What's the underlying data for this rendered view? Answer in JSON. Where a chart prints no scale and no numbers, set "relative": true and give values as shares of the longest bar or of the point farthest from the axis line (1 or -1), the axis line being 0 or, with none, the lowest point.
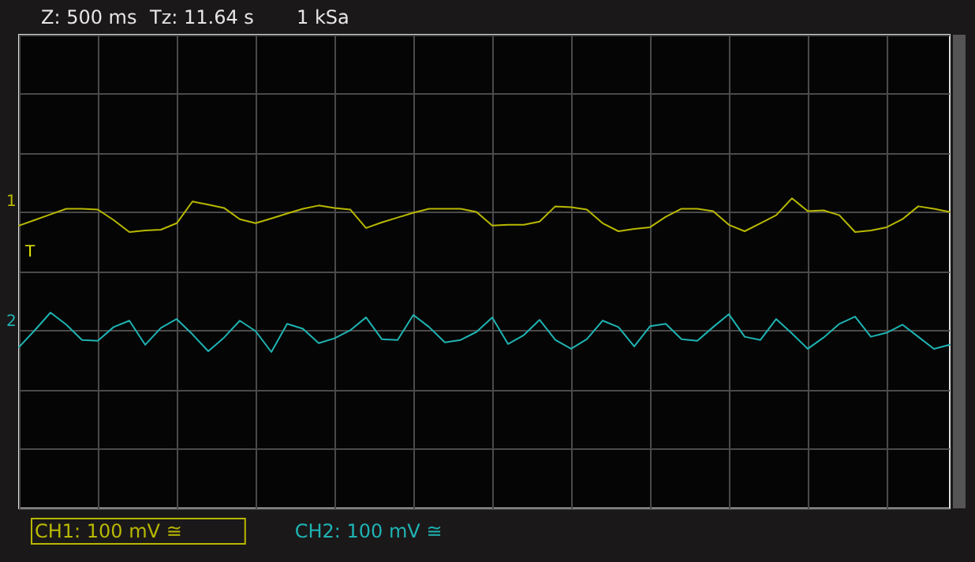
{
  "chart_data": {
    "type": "line",
    "relative": true,
    "grid": true,
    "legend": "bottom left",
    "marker": "none",
    "line_style": "solid",
    "annotations": [
      "Z: 500 ms",
      "Tz: 11.64 s",
      "1 kSa",
      "1",
      "2",
      "T"
    ],
    "categories": [
      null,
      null,
      null,
      null,
      null,
      null,
      null,
      null,
      null,
      null,
      null,
      null,
      null,
      null,
      null,
      null,
      null,
      null,
      null,
      null,
      null,
      null,
      null,
      null,
      null,
      null,
      null,
      null,
      null,
      null,
      null,
      null,
      null,
      null,
      null,
      null,
      null,
      null,
      null,
      null,
      null,
      null,
      null,
      null,
      null,
      null,
      null,
      null,
      null,
      null,
      null,
      null,
      null,
      null,
      null,
      null,
      null,
      null,
      null,
      null
    ],
    "series": [
      {
        "name": "CH1: 100 mV ≅",
        "color": "#b8b800",
        "values": [
          0.57,
          0.64,
          0.71,
          0.78,
          0.78,
          0.77,
          0.64,
          0.49,
          0.51,
          0.52,
          0.6,
          0.87,
          0.83,
          0.79,
          0.65,
          0.6,
          0.66,
          0.72,
          0.78,
          0.82,
          0.79,
          0.77,
          0.54,
          0.61,
          0.67,
          0.73,
          0.78,
          0.78,
          0.78,
          0.74,
          0.57,
          0.58,
          0.58,
          0.62,
          0.81,
          0.8,
          0.77,
          0.6,
          0.5,
          0.53,
          0.55,
          0.68,
          0.78,
          0.78,
          0.75,
          0.58,
          0.5,
          0.6,
          0.7,
          0.91,
          0.75,
          0.76,
          0.7,
          0.49,
          0.51,
          0.55,
          0.65,
          0.81,
          0.78,
          0.74
        ]
      },
      {
        "name": "CH2: 100 mV ≅",
        "color": "#1fb3b3",
        "values": [
          -0.94,
          -0.73,
          -0.51,
          -0.66,
          -0.85,
          -0.86,
          -0.69,
          -0.61,
          -0.91,
          -0.7,
          -0.59,
          -0.78,
          -0.99,
          -0.82,
          -0.61,
          -0.74,
          -1,
          -0.65,
          -0.71,
          -0.89,
          -0.83,
          -0.73,
          -0.57,
          -0.84,
          -0.85,
          -0.54,
          -0.69,
          -0.88,
          -0.85,
          -0.75,
          -0.57,
          -0.9,
          -0.79,
          -0.6,
          -0.85,
          -0.96,
          -0.84,
          -0.61,
          -0.69,
          -0.93,
          -0.68,
          -0.65,
          -0.84,
          -0.86,
          -0.69,
          -0.53,
          -0.81,
          -0.85,
          -0.59,
          -0.77,
          -0.96,
          -0.82,
          -0.65,
          -0.56,
          -0.81,
          -0.76,
          -0.66,
          -0.81,
          -0.96,
          -0.91
        ]
      }
    ]
  }
}
